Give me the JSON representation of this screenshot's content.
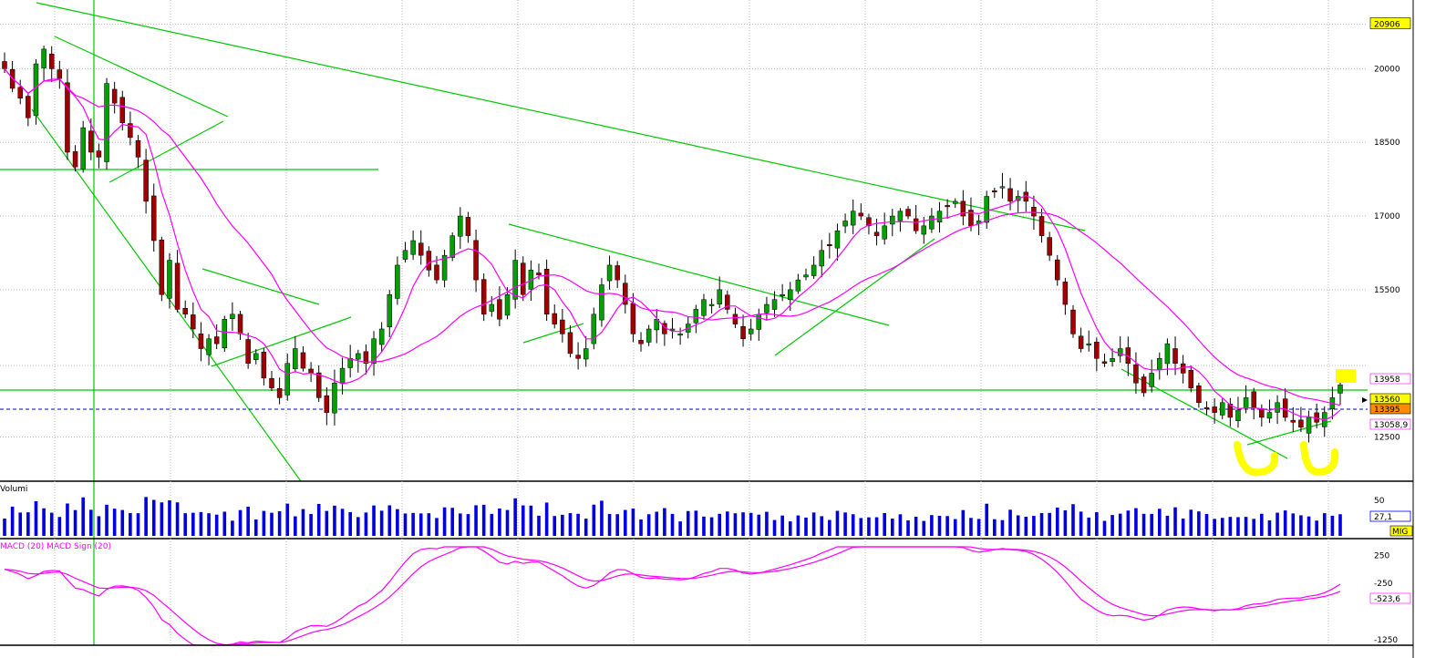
{
  "chart_data": [
    {
      "type": "candlestick",
      "ylim": [
        11600,
        21400
      ],
      "y_ticks": [
        "20906",
        "20000",
        "18500",
        "17000",
        "15500",
        "12500"
      ],
      "price_tags": [
        {
          "label": "13958",
          "value": 13958,
          "color": "#ff00ff",
          "bg": "#ffffff"
        },
        {
          "label": "13560",
          "value": 13560,
          "color": "#000000",
          "bg": "#ffff00"
        },
        {
          "label": "13395",
          "value": 13395,
          "color": "#000000",
          "bg": "#ff8c00"
        },
        {
          "label": "13058,9",
          "value": 13058.9,
          "color": "#ff00ff",
          "bg": "#ffffff"
        }
      ],
      "top_tag": {
        "label": "20906",
        "value": 20906,
        "bg": "#ffff00"
      },
      "current_level": 13560,
      "reference_level": 13395,
      "moving_averages": [
        "MA fast",
        "MA slow"
      ],
      "ma_color": "#ff00ff",
      "up_color": "#00a000",
      "down_color": "#a00000",
      "trendline_color": "#00c800",
      "closes": [
        20000,
        19600,
        19400,
        19000,
        20100,
        20400,
        20000,
        19800,
        18300,
        18000,
        18800,
        18300,
        18200,
        19700,
        19300,
        18900,
        18600,
        18200,
        17300,
        16500,
        15400,
        16100,
        15100,
        15000,
        14700,
        14300,
        14500,
        14400,
        14900,
        15000,
        14600,
        14000,
        14200,
        13700,
        13500,
        13300,
        14000,
        14300,
        13900,
        13800,
        13300,
        13000,
        13600,
        13900,
        14100,
        14200,
        14000,
        14500,
        14700,
        15400,
        16000,
        16300,
        16500,
        16200,
        15900,
        15700,
        16200,
        16600,
        17000,
        16600,
        15700,
        15000,
        15200,
        14900,
        15400,
        16100,
        15400,
        15900,
        15800,
        15000,
        14800,
        14600,
        14200,
        14100,
        14300,
        15000,
        15600,
        16000,
        15700,
        15200,
        14600,
        14400,
        14700,
        14900,
        14600,
        14700,
        14600,
        14800,
        15100,
        15300,
        15200,
        15500,
        15100,
        14800,
        14500,
        14700,
        15000,
        15200,
        15300,
        15400,
        15500,
        15700,
        15800,
        16000,
        16300,
        16400,
        16700,
        16900,
        17100,
        17000,
        16800,
        16600,
        16800,
        17000,
        17100,
        17000,
        16700,
        16800,
        17000,
        17100,
        17200,
        17300,
        17000,
        16800,
        16900,
        17400,
        17500,
        17600,
        17300,
        17400,
        17300,
        17000,
        16600,
        16200,
        15700,
        15200,
        14600,
        14300,
        14400,
        14100,
        14000,
        14100,
        14300,
        14000,
        13600,
        13400,
        13800,
        14100,
        14400,
        14000,
        13800,
        13500,
        13200,
        13100,
        13000,
        13200,
        12900,
        13050,
        13300,
        13100,
        12900,
        13000,
        13200,
        12900,
        12800,
        12700,
        12900,
        12800,
        13000,
        13300,
        13560
      ],
      "macd_ylim": [
        -1350,
        400
      ],
      "macd_ticks": [
        "250",
        "-250",
        "-1250"
      ],
      "macd_tag": {
        "label": "-523,6",
        "value": -523.6
      },
      "macd_legend": "MACD (20) MACD Sign (20)"
    },
    {
      "type": "bar",
      "name": "Volumi",
      "ylim": [
        0,
        75
      ],
      "ticks": [
        "50"
      ],
      "tag_label": "27,1",
      "unit_label": "MIG"
    }
  ]
}
